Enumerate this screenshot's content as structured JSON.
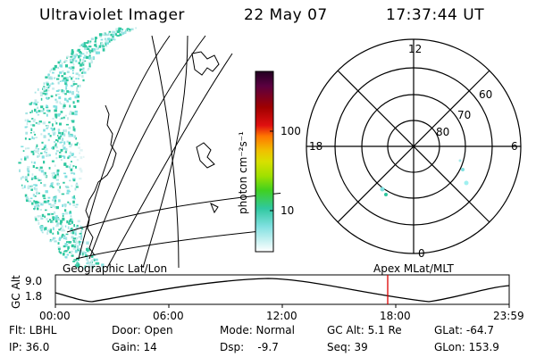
{
  "header": {
    "instrument": "Ultraviolet Imager",
    "date": "22 May 07",
    "time": "17:37:44 UT"
  },
  "colorbar": {
    "unit_label": "photon cm⁻²s⁻¹",
    "ticks": [
      "100",
      "10"
    ],
    "scale": "log",
    "colors_top_to_bottom": [
      "#220022",
      "#5a0040",
      "#a00000",
      "#e01010",
      "#ff7700",
      "#f0c000",
      "#d8e000",
      "#a0e000",
      "#40d020",
      "#30c8a0",
      "#80e0e0",
      "#ffffff"
    ]
  },
  "polar_plot": {
    "mlt_labels": [
      "12",
      "18",
      "6",
      "0"
    ],
    "lat_labels": [
      "60",
      "70",
      "80"
    ]
  },
  "timeline": {
    "left_label": "Geographic Lat/Lon",
    "right_label": "Apex MLat/MLT",
    "y_axis_label": "GC Alt",
    "y_ticks": [
      "9.0",
      "1.8"
    ],
    "x_ticks": [
      "00:00",
      "06:00",
      "12:00",
      "18:00",
      "23:59"
    ],
    "current_time_marker": "17:37:44",
    "marker_color": "#dd0000"
  },
  "status": {
    "filter": "Flt: LBHL",
    "door": "Door: Open",
    "mode": "Mode: Normal",
    "gc_alt": "GC Alt: 5.1 Re",
    "glat": "GLat: -64.7",
    "ip": "IP: 36.0",
    "gain": "Gain: 14",
    "dsp": "Dsp:    -9.7",
    "seq": "Seq: 39",
    "glon": "GLon: 153.9"
  }
}
